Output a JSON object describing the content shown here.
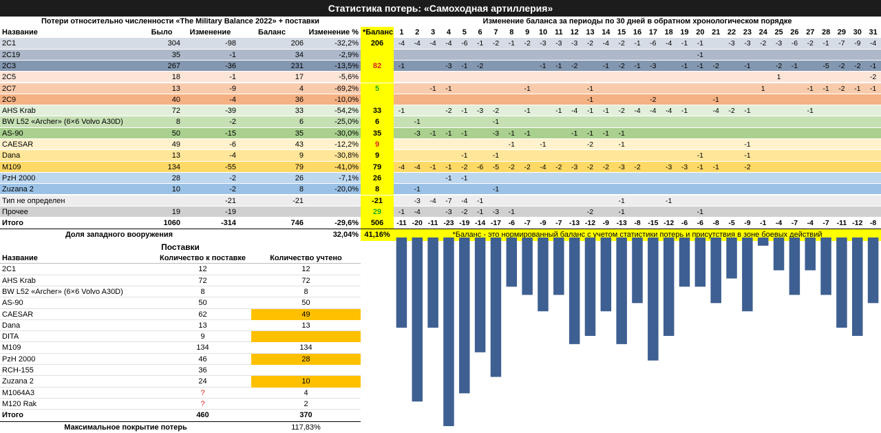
{
  "title": "Статистика потерь: «Самоходная артиллерия»",
  "left_section_title": "Потери относительно численности «The Military Balance 2022» + поставки",
  "right_section_title": "Изменение баланса за периоды по 30 дней в обратном хронологическом порядке",
  "columns": {
    "name": "Название",
    "was": "Было",
    "change": "Изменение",
    "balance": "Баланс",
    "change_pct": "Изменение %",
    "norm": "*Баланс"
  },
  "periods": [
    "1",
    "2",
    "3",
    "4",
    "5",
    "6",
    "7",
    "8",
    "9",
    "10",
    "11",
    "12",
    "13",
    "14",
    "15",
    "16",
    "17",
    "18",
    "19",
    "20",
    "21",
    "22",
    "23",
    "24",
    "25",
    "26",
    "27",
    "28",
    "29",
    "30",
    "31"
  ],
  "rows": [
    {
      "name": "2С1",
      "was": "304",
      "change": "-98",
      "balance": "206",
      "pct": "-32,2%",
      "norm": "206",
      "norm_color": "#000000",
      "bg": "#d6dce5",
      "losses": [
        "-4",
        "-4",
        "-4",
        "-4",
        "-6",
        "-1",
        "-2",
        "-1",
        "-2",
        "-3",
        "-3",
        "-3",
        "-2",
        "-4",
        "-2",
        "-1",
        "-6",
        "-4",
        "-1",
        "-1",
        "",
        "-3",
        "-3",
        "-2",
        "-3",
        "-6",
        "-2",
        "-1",
        "-7",
        "-9",
        "-4"
      ]
    },
    {
      "name": "2С19",
      "was": "35",
      "change": "-1",
      "balance": "34",
      "pct": "-2,9%",
      "norm": "",
      "norm_color": "#000000",
      "bg": "#adb9ca",
      "losses": [
        "",
        "",
        "",
        "",
        "",
        "",
        "",
        "",
        "",
        "",
        "",
        "",
        "",
        "",
        "",
        "",
        "",
        "",
        "",
        "-1",
        "",
        "",
        "",
        "",
        "",
        "",
        "",
        "",
        "",
        "",
        ""
      ]
    },
    {
      "name": "2С3",
      "was": "267",
      "change": "-36",
      "balance": "231",
      "pct": "-13,5%",
      "norm": "82",
      "norm_color": "#e02020",
      "bg": "#8497b0",
      "losses": [
        "-1",
        "",
        "",
        "-3",
        "-1",
        "-2",
        "",
        "",
        "",
        "-1",
        "-1",
        "-2",
        "",
        "-1",
        "-2",
        "-1",
        "-3",
        "",
        "-1",
        "-1",
        "-2",
        "",
        "-1",
        "",
        "-2",
        "-1",
        "",
        "-5",
        "-2",
        "-2",
        "-1"
      ]
    },
    {
      "name": "2С5",
      "was": "18",
      "change": "-1",
      "balance": "17",
      "pct": "-5,6%",
      "norm": "",
      "norm_color": "#000000",
      "bg": "#fce4d6",
      "losses": [
        "",
        "",
        "",
        "",
        "",
        "",
        "",
        "",
        "",
        "",
        "",
        "",
        "",
        "",
        "",
        "",
        "",
        "",
        "",
        "",
        "",
        "",
        "",
        "",
        "1",
        "",
        "",
        "",
        "",
        "",
        "-2"
      ]
    },
    {
      "name": "2С7",
      "was": "13",
      "change": "-9",
      "balance": "4",
      "pct": "-69,2%",
      "norm": "5",
      "norm_color": "#22aa22",
      "bg": "#f8cbad",
      "losses": [
        "",
        "",
        "-1",
        "-1",
        "",
        "",
        "",
        "",
        "-1",
        "",
        "",
        "",
        "-1",
        "",
        "",
        "",
        "",
        "",
        "",
        "",
        "",
        "",
        "",
        "1",
        "",
        "",
        "-1",
        "-1",
        "-2",
        "-1",
        "-1"
      ]
    },
    {
      "name": "2С9",
      "was": "40",
      "change": "-4",
      "balance": "36",
      "pct": "-10,0%",
      "norm": "",
      "norm_color": "#000000",
      "bg": "#f4b183",
      "losses": [
        "",
        "",
        "",
        "",
        "",
        "",
        "",
        "",
        "",
        "",
        "",
        "",
        "-1",
        "",
        "",
        "",
        "-2",
        "",
        "",
        "",
        "-1",
        "",
        "",
        "",
        "",
        "",
        "",
        "",
        "",
        "",
        ""
      ]
    },
    {
      "name": "AHS Krab",
      "was": "72",
      "change": "-39",
      "balance": "33",
      "pct": "-54,2%",
      "norm": "33",
      "norm_color": "#000000",
      "bg": "#e2efda",
      "losses": [
        "-1",
        "",
        "",
        "-2",
        "-1",
        "-3",
        "-2",
        "",
        "-1",
        "",
        "-1",
        "-4",
        "-1",
        "-1",
        "-2",
        "-4",
        "-4",
        "-4",
        "-1",
        "",
        "-4",
        "-2",
        "-1",
        "",
        "",
        "",
        "-1",
        "",
        "",
        "",
        ""
      ]
    },
    {
      "name": "BW L52 «Archer» (6×6 Volvo A30D)",
      "was": "8",
      "change": "-2",
      "balance": "6",
      "pct": "-25,0%",
      "norm": "6",
      "norm_color": "#000000",
      "bg": "#c6e0b4",
      "losses": [
        "",
        "-1",
        "",
        "",
        "",
        "",
        "-1",
        "",
        "",
        "",
        "",
        "",
        "",
        "",
        "",
        "",
        "",
        "",
        "",
        "",
        "",
        "",
        "",
        "",
        "",
        "",
        "",
        "",
        "",
        "",
        ""
      ]
    },
    {
      "name": "AS-90",
      "was": "50",
      "change": "-15",
      "balance": "35",
      "pct": "-30,0%",
      "norm": "35",
      "norm_color": "#000000",
      "bg": "#a9d08e",
      "losses": [
        "",
        "-3",
        "-1",
        "-1",
        "-1",
        "",
        "-3",
        "-1",
        "-1",
        "",
        "",
        "-1",
        "-1",
        "-1",
        "-1",
        "",
        "",
        "",
        "",
        "",
        "",
        "",
        "",
        "",
        "",
        "",
        "",
        "",
        "",
        "",
        ""
      ]
    },
    {
      "name": "CAESAR",
      "was": "49",
      "change": "-6",
      "balance": "43",
      "pct": "-12,2%",
      "norm": "9",
      "norm_color": "#e02020",
      "bg": "#fff2cc",
      "losses": [
        "",
        "",
        "",
        "",
        "",
        "",
        "",
        "-1",
        "",
        "-1",
        "",
        "",
        "-2",
        "",
        "-1",
        "",
        "",
        "",
        "",
        "",
        "",
        "",
        "-1",
        "",
        "",
        "",
        "",
        "",
        "",
        "",
        ""
      ]
    },
    {
      "name": "Dana",
      "was": "13",
      "change": "-4",
      "balance": "9",
      "pct": "-30,8%",
      "norm": "9",
      "norm_color": "#000000",
      "bg": "#ffe699",
      "losses": [
        "",
        "",
        "",
        "",
        "-1",
        "",
        "-1",
        "",
        "",
        "",
        "",
        "",
        "",
        "",
        "",
        "",
        "",
        "",
        "",
        "-1",
        "",
        "",
        "-1",
        "",
        "",
        "",
        "",
        "",
        "",
        "",
        ""
      ]
    },
    {
      "name": "M109",
      "was": "134",
      "change": "-55",
      "balance": "79",
      "pct": "-41,0%",
      "norm": "79",
      "norm_color": "#000000",
      "bg": "#ffd966",
      "losses": [
        "-4",
        "-4",
        "-1",
        "-1",
        "-2",
        "-6",
        "-5",
        "-2",
        "-2",
        "-4",
        "-2",
        "-3",
        "-2",
        "-2",
        "-3",
        "-2",
        "",
        "-3",
        "-3",
        "-1",
        "-1",
        "",
        "-2",
        "",
        "",
        "",
        "",
        "",
        "",
        "",
        ""
      ]
    },
    {
      "name": "PzH 2000",
      "was": "28",
      "change": "-2",
      "balance": "26",
      "pct": "-7,1%",
      "norm": "26",
      "norm_color": "#000000",
      "bg": "#bdd7ee",
      "losses": [
        "",
        "",
        "",
        "-1",
        "-1",
        "",
        "",
        "",
        "",
        "",
        "",
        "",
        "",
        "",
        "",
        "",
        "",
        "",
        "",
        "",
        "",
        "",
        "",
        "",
        "",
        "",
        "",
        "",
        "",
        "",
        ""
      ]
    },
    {
      "name": "Zuzana 2",
      "was": "10",
      "change": "-2",
      "balance": "8",
      "pct": "-20,0%",
      "norm": "8",
      "norm_color": "#000000",
      "bg": "#9bc2e6",
      "losses": [
        "",
        "-1",
        "",
        "",
        "",
        "",
        "-1",
        "",
        "",
        "",
        "",
        "",
        "",
        "",
        "",
        "",
        "",
        "",
        "",
        "",
        "",
        "",
        "",
        "",
        "",
        "",
        "",
        "",
        "",
        "",
        ""
      ]
    },
    {
      "name": "Тип не определен",
      "was": "",
      "change": "-21",
      "balance": "-21",
      "pct": "",
      "norm": "-21",
      "norm_color": "#000000",
      "bg": "#ededed",
      "losses": [
        "",
        "-3",
        "-4",
        "-7",
        "-4",
        "-1",
        "",
        "",
        "",
        "",
        "",
        "",
        "",
        "",
        "-1",
        "",
        "",
        "-1",
        "",
        "",
        "",
        "",
        "",
        "",
        "",
        "",
        "",
        "",
        "",
        "",
        ""
      ]
    },
    {
      "name": "Прочее",
      "was": "19",
      "change": "-19",
      "balance": "",
      "pct": "",
      "norm": "29",
      "norm_color": "#22aa22",
      "bg": "#d0d0d0",
      "losses": [
        "-1",
        "-4",
        "",
        "-3",
        "-2",
        "-1",
        "-3",
        "-1",
        "",
        "",
        "",
        "",
        "-2",
        "",
        "-1",
        "",
        "",
        "",
        "",
        "-1",
        "",
        "",
        "",
        "",
        "",
        "",
        "",
        "",
        "",
        "",
        ""
      ]
    }
  ],
  "total": {
    "name": "Итого",
    "was": "1060",
    "change": "-314",
    "balance": "746",
    "pct": "-29,6%",
    "norm": "506",
    "losses": [
      "-11",
      "-20",
      "-11",
      "-23",
      "-19",
      "-14",
      "-17",
      "-6",
      "-7",
      "-9",
      "-7",
      "-13",
      "-12",
      "-9",
      "-13",
      "-8",
      "-15",
      "-12",
      "-6",
      "-6",
      "-8",
      "-5",
      "-9",
      "-1",
      "-4",
      "-7",
      "-4",
      "-7",
      "-11",
      "-12",
      "-8"
    ]
  },
  "western_share": {
    "label": "Доля западного вооружения",
    "value": "32,04%",
    "norm_value": "41,16%"
  },
  "footnote": "*Баланс - это нормированный баланс с учетом статистики потерь и присутствия в зоне боевых действий",
  "supplies": {
    "title": "Поставки",
    "headers": {
      "name": "Название",
      "planned": "Количество к поставке",
      "counted": "Количество учтено"
    },
    "rows": [
      {
        "name": "2С1",
        "planned": "12",
        "counted": "12",
        "hl": false,
        "q": false
      },
      {
        "name": "AHS Krab",
        "planned": "72",
        "counted": "72",
        "hl": false,
        "q": false
      },
      {
        "name": "BW L52 «Archer» (6×6 Volvo A30D)",
        "planned": "8",
        "counted": "8",
        "hl": false,
        "q": false
      },
      {
        "name": "AS-90",
        "planned": "50",
        "counted": "50",
        "hl": false,
        "q": false
      },
      {
        "name": "CAESAR",
        "planned": "62",
        "counted": "49",
        "hl": true,
        "q": false
      },
      {
        "name": "Dana",
        "planned": "13",
        "counted": "13",
        "hl": false,
        "q": false
      },
      {
        "name": "DITA",
        "planned": "9",
        "counted": "",
        "hl": true,
        "q": false
      },
      {
        "name": "M109",
        "planned": "134",
        "counted": "134",
        "hl": false,
        "q": false
      },
      {
        "name": "PzH 2000",
        "planned": "46",
        "counted": "28",
        "hl": true,
        "q": false
      },
      {
        "name": "RCH-155",
        "planned": "36",
        "counted": "",
        "hl": false,
        "q": false
      },
      {
        "name": "Zuzana 2",
        "planned": "24",
        "counted": "10",
        "hl": true,
        "q": false
      },
      {
        "name": "M1064A3",
        "planned": "?",
        "counted": "4",
        "hl": false,
        "q": true
      },
      {
        "name": "M120 Rak",
        "planned": "?",
        "counted": "2",
        "hl": false,
        "q": true
      }
    ],
    "total": {
      "name": "Итого",
      "planned": "460",
      "counted": "370"
    },
    "coverage": {
      "label": "Максимальное покрытие потерь",
      "value": "117,83%"
    }
  },
  "chart_data": {
    "type": "bar",
    "categories": [
      "1",
      "2",
      "3",
      "4",
      "5",
      "6",
      "7",
      "8",
      "9",
      "10",
      "11",
      "12",
      "13",
      "14",
      "15",
      "16",
      "17",
      "18",
      "19",
      "20",
      "21",
      "22",
      "23",
      "24",
      "25",
      "26",
      "27",
      "28",
      "29",
      "30",
      "31"
    ],
    "values": [
      -11,
      -20,
      -11,
      -23,
      -19,
      -14,
      -17,
      -6,
      -7,
      -9,
      -7,
      -13,
      -12,
      -9,
      -13,
      -8,
      -15,
      -12,
      -6,
      -6,
      -8,
      -5,
      -9,
      -1,
      -4,
      -7,
      -4,
      -7,
      -11,
      -12,
      -8
    ],
    "ylim": [
      -23,
      0
    ],
    "color": "#3e5f92"
  },
  "colors": {
    "title_bg": "#1c1c1c",
    "norm_col": "#ffff00",
    "hl": "#ffc000",
    "bar": "#3e5f92"
  }
}
